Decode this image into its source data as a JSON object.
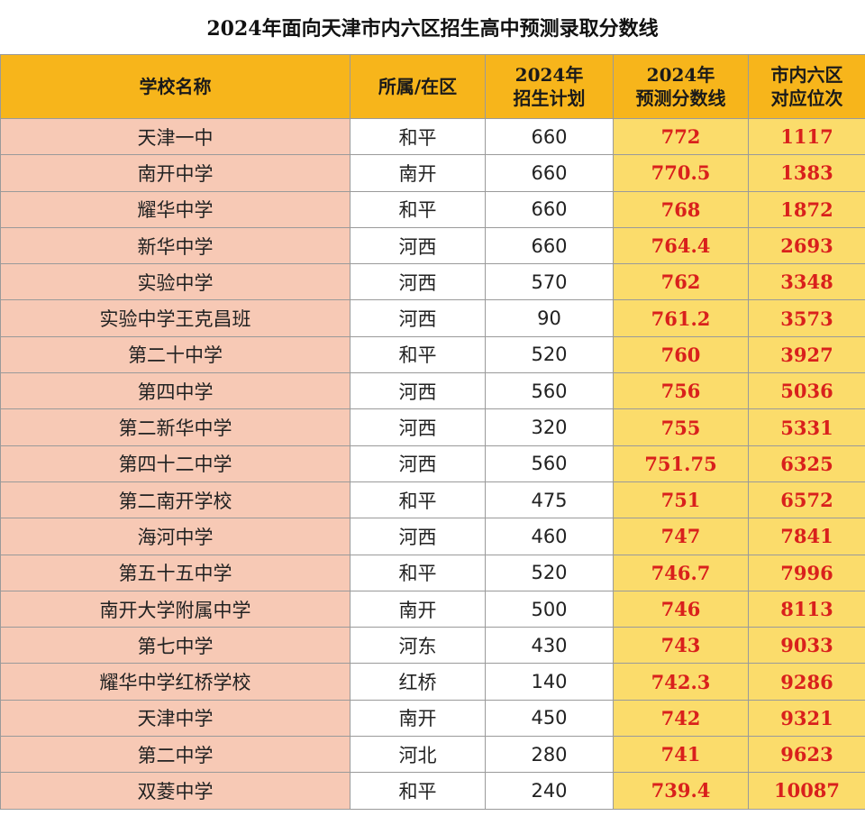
{
  "title": "2024年面向天津市内六区招生高中预测录取分数线",
  "headers": {
    "school": "学校名称",
    "district": "所属/在区",
    "plan_line1": "2024年",
    "plan_line2": "招生计划",
    "score_line1": "2024年",
    "score_line2": "预测分数线",
    "rank_line1": "市内六区",
    "rank_line2": "对应位次"
  },
  "rows": [
    {
      "school": "天津一中",
      "district": "和平",
      "plan": "660",
      "score": "772",
      "rank": "1117"
    },
    {
      "school": "南开中学",
      "district": "南开",
      "plan": "660",
      "score": "770.5",
      "rank": "1383"
    },
    {
      "school": "耀华中学",
      "district": "和平",
      "plan": "660",
      "score": "768",
      "rank": "1872"
    },
    {
      "school": "新华中学",
      "district": "河西",
      "plan": "660",
      "score": "764.4",
      "rank": "2693"
    },
    {
      "school": "实验中学",
      "district": "河西",
      "plan": "570",
      "score": "762",
      "rank": "3348"
    },
    {
      "school": "实验中学王克昌班",
      "district": "河西",
      "plan": "90",
      "score": "761.2",
      "rank": "3573"
    },
    {
      "school": "第二十中学",
      "district": "和平",
      "plan": "520",
      "score": "760",
      "rank": "3927"
    },
    {
      "school": "第四中学",
      "district": "河西",
      "plan": "560",
      "score": "756",
      "rank": "5036"
    },
    {
      "school": "第二新华中学",
      "district": "河西",
      "plan": "320",
      "score": "755",
      "rank": "5331"
    },
    {
      "school": "第四十二中学",
      "district": "河西",
      "plan": "560",
      "score": "751.75",
      "rank": "6325"
    },
    {
      "school": "第二南开学校",
      "district": "和平",
      "plan": "475",
      "score": "751",
      "rank": "6572"
    },
    {
      "school": "海河中学",
      "district": "河西",
      "plan": "460",
      "score": "747",
      "rank": "7841"
    },
    {
      "school": "第五十五中学",
      "district": "和平",
      "plan": "520",
      "score": "746.7",
      "rank": "7996"
    },
    {
      "school": "南开大学附属中学",
      "district": "南开",
      "plan": "500",
      "score": "746",
      "rank": "8113"
    },
    {
      "school": "第七中学",
      "district": "河东",
      "plan": "430",
      "score": "743",
      "rank": "9033"
    },
    {
      "school": "耀华中学红桥学校",
      "district": "红桥",
      "plan": "140",
      "score": "742.3",
      "rank": "9286"
    },
    {
      "school": "天津中学",
      "district": "南开",
      "plan": "450",
      "score": "742",
      "rank": "9321"
    },
    {
      "school": "第二中学",
      "district": "河北",
      "plan": "280",
      "score": "741",
      "rank": "9623"
    },
    {
      "school": "双菱中学",
      "district": "和平",
      "plan": "240",
      "score": "739.4",
      "rank": "10087"
    }
  ],
  "colors": {
    "header_bg": "#f7b51b",
    "school_col_bg": "#f7c9b5",
    "score_col_bg": "#fbdc6b",
    "score_text": "#d9201c"
  }
}
